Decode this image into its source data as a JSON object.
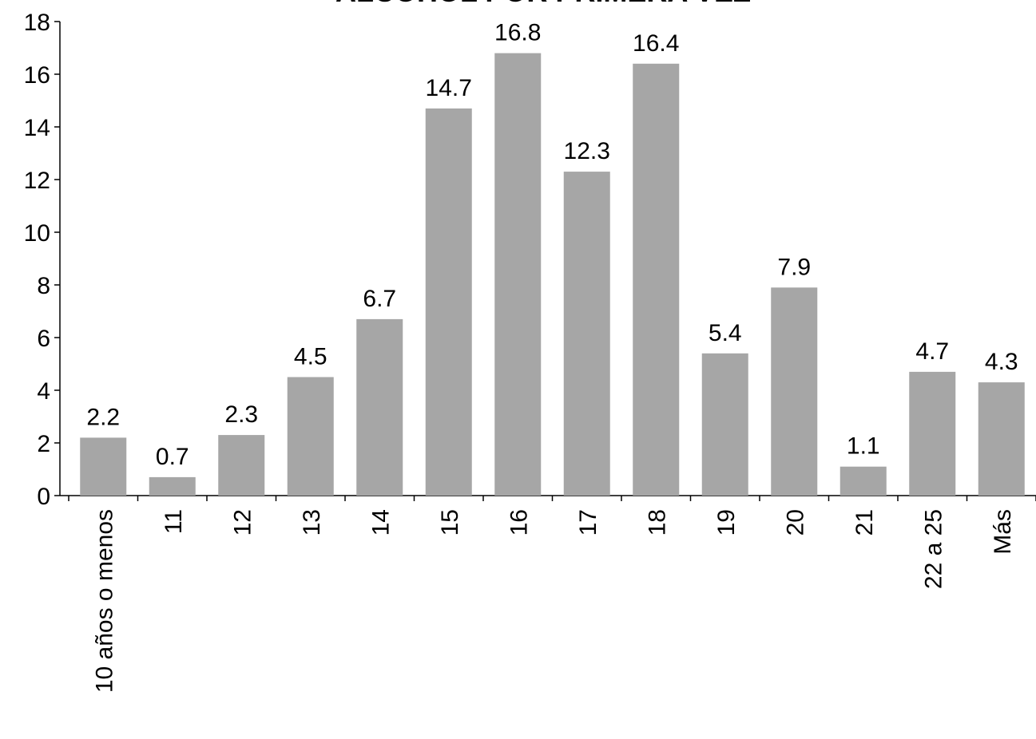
{
  "chart_data": {
    "type": "bar",
    "title": "ALCOHOL POR PRIMERA VEZ",
    "categories": [
      "10 años o menos",
      "11",
      "12",
      "13",
      "14",
      "15",
      "16",
      "17",
      "18",
      "19",
      "20",
      "21",
      "22 a 25",
      "Más"
    ],
    "values": [
      2.2,
      0.7,
      2.3,
      4.5,
      6.7,
      14.7,
      16.8,
      12.3,
      16.4,
      5.4,
      7.9,
      1.1,
      4.7,
      4.3
    ],
    "color": "#a6a6a6",
    "ylim": [
      0,
      18
    ],
    "yticks": [
      0,
      2,
      4,
      6,
      8,
      10,
      12,
      14,
      16,
      18
    ],
    "grid": false
  }
}
